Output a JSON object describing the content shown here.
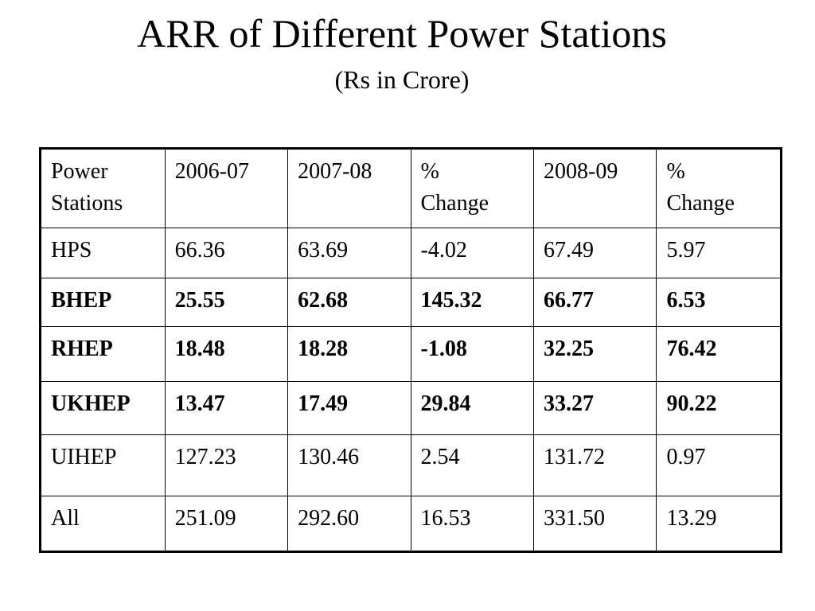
{
  "title": "ARR of Different Power Stations",
  "subtitle": "(Rs in Crore)",
  "table": {
    "headers": [
      [
        "Power",
        "Stations"
      ],
      [
        "2006-07"
      ],
      [
        "2007-08"
      ],
      [
        "%",
        "Change"
      ],
      [
        "2008-09"
      ],
      [
        "%",
        "Change"
      ]
    ],
    "rows": [
      {
        "bold": false,
        "cells": [
          "HPS",
          "66.36",
          "63.69",
          "-4.02",
          "67.49",
          "5.97"
        ]
      },
      {
        "bold": true,
        "cells": [
          "BHEP",
          "25.55",
          "62.68",
          "145.32",
          "66.77",
          "6.53"
        ]
      },
      {
        "bold": true,
        "cells": [
          "RHEP",
          "18.48",
          "18.28",
          "-1.08",
          "32.25",
          "76.42"
        ]
      },
      {
        "bold": true,
        "cells": [
          "UKHEP",
          "13.47",
          "17.49",
          "29.84",
          "33.27",
          "90.22"
        ]
      },
      {
        "bold": false,
        "cells": [
          "UIHEP",
          "127.23",
          "130.46",
          "2.54",
          "131.72",
          "0.97"
        ]
      },
      {
        "bold": false,
        "cells": [
          "All",
          "251.09",
          "292.60",
          "16.53",
          "331.50",
          "13.29"
        ]
      }
    ]
  }
}
